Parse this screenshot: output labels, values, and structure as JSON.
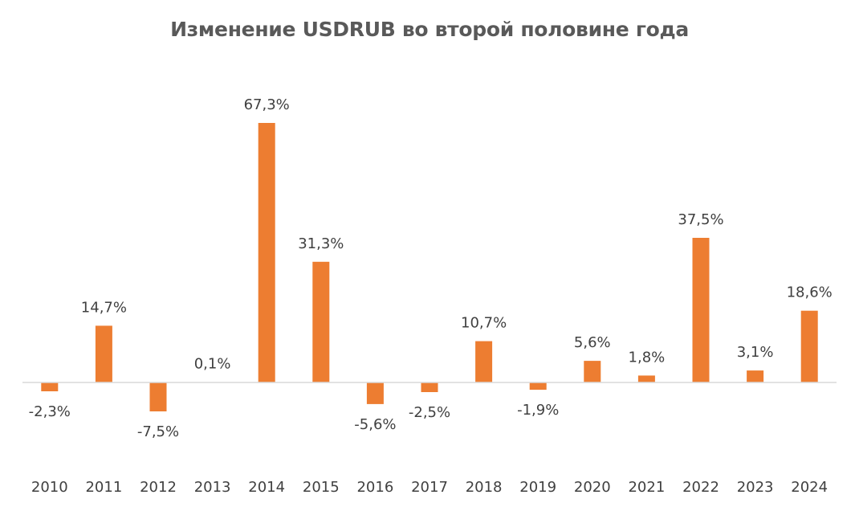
{
  "chart_data": {
    "type": "bar",
    "title": "Изменение USDRUB во второй половине года",
    "xlabel": "",
    "ylabel": "",
    "categories": [
      "2010",
      "2011",
      "2012",
      "2013",
      "2014",
      "2015",
      "2016",
      "2017",
      "2018",
      "2019",
      "2020",
      "2021",
      "2022",
      "2023",
      "2024"
    ],
    "values": [
      -2.3,
      14.7,
      -7.5,
      0.1,
      67.3,
      31.3,
      -5.6,
      -2.5,
      10.7,
      -1.9,
      5.6,
      1.8,
      37.5,
      3.1,
      18.6
    ],
    "data_labels": [
      "-2,3%",
      "14,7%",
      "-7,5%",
      "0,1%",
      "67,3%",
      "31,3%",
      "-5,6%",
      "-2,5%",
      "10,7%",
      "-1,9%",
      "5,6%",
      "1,8%",
      "37,5%",
      "3,1%",
      "18,6%"
    ],
    "unit": "%",
    "ylim": [
      -20,
      80
    ],
    "grid": false,
    "legend": "none",
    "colors": {
      "bar": "#ED7D31",
      "axis": "#D9D9D9",
      "text": "#404040",
      "title": "#595959"
    }
  }
}
